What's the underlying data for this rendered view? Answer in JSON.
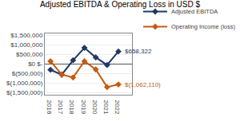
{
  "chart_data": {
    "type": "line",
    "title": "Adjusted EBITDA & Operating Loss in USD $",
    "x": [
      2016,
      2017,
      2018,
      2019,
      2020,
      2021,
      2022
    ],
    "series": [
      {
        "name": "Adjusted EBITDA",
        "color": "#1F3864",
        "marker": "diamond",
        "values": [
          -300000,
          -550000,
          200000,
          850000,
          350000,
          -50000,
          658322
        ]
      },
      {
        "name": "Operating Income (loss)",
        "color": "#C55A11",
        "marker": "diamond",
        "values": [
          150000,
          -550000,
          -700000,
          150000,
          -280000,
          -1200000,
          -1062110
        ]
      }
    ],
    "xlim": [
      2015.5,
      2023.2
    ],
    "xticks": [
      2016,
      2017,
      2018,
      2019,
      2020,
      2021,
      2022
    ],
    "ylim": [
      -1600000,
      1600000
    ],
    "yticks": [
      {
        "value": -1500000,
        "label": "$(1,500,000)"
      },
      {
        "value": -1000000,
        "label": "$(1,000,000)"
      },
      {
        "value": -500000,
        "label": "$(500,000)"
      },
      {
        "value": 0,
        "label": "$0 $-"
      },
      {
        "value": 500000,
        "label": "$500,000"
      },
      {
        "value": 1000000,
        "label": "$1,000,000"
      },
      {
        "value": 1500000,
        "label": "$1,500,000"
      }
    ],
    "grid": true,
    "legend": "upper right",
    "annotations": [
      {
        "text": "$658,322",
        "x": 2022,
        "y": 658322,
        "color": "#1F3864"
      },
      {
        "text": "$(1,062,110)",
        "x": 2022,
        "y": -1062110,
        "color": "#C55A11"
      }
    ]
  }
}
